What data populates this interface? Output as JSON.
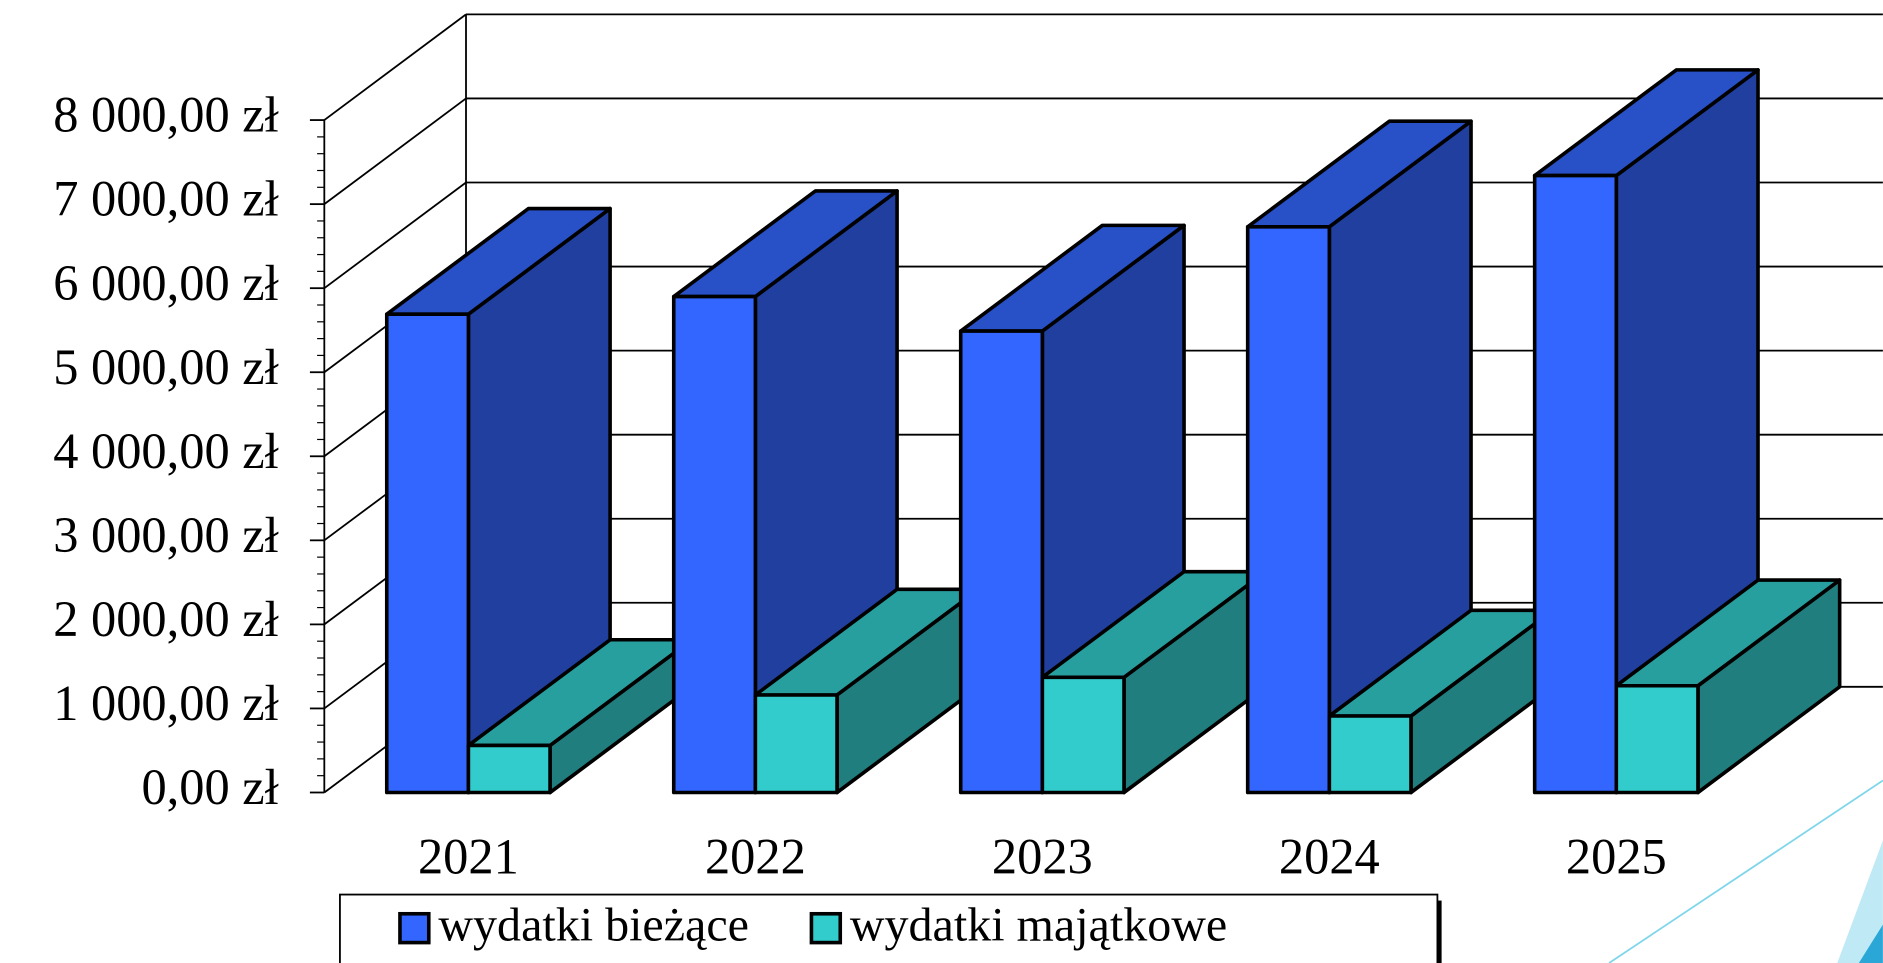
{
  "chart_data": {
    "type": "bar3d",
    "categories": [
      "2021",
      "2022",
      "2023",
      "2024",
      "2025"
    ],
    "series": [
      {
        "name": "wydatki bieżące",
        "color": "#3366ff",
        "values": [
          5690,
          5900,
          5490,
          6730,
          7340
        ]
      },
      {
        "name": "wydatki majątkowe",
        "color": "#33cccc",
        "values": [
          560,
          1160,
          1370,
          910,
          1270
        ]
      }
    ],
    "ylim": [
      0,
      8000
    ],
    "yticks": [
      {
        "value": 0,
        "label": "0,00 zł"
      },
      {
        "value": 1000,
        "label": "1 000,00 zł"
      },
      {
        "value": 2000,
        "label": "2 000,00 zł"
      },
      {
        "value": 3000,
        "label": "3 000,00 zł"
      },
      {
        "value": 4000,
        "label": "4 000,00 zł"
      },
      {
        "value": 5000,
        "label": "5 000,00 zł"
      },
      {
        "value": 6000,
        "label": "6 000,00 zł"
      },
      {
        "value": 7000,
        "label": "7 000,00 zł"
      },
      {
        "value": 8000,
        "label": "8 000,00 zł"
      }
    ],
    "grid": true
  }
}
